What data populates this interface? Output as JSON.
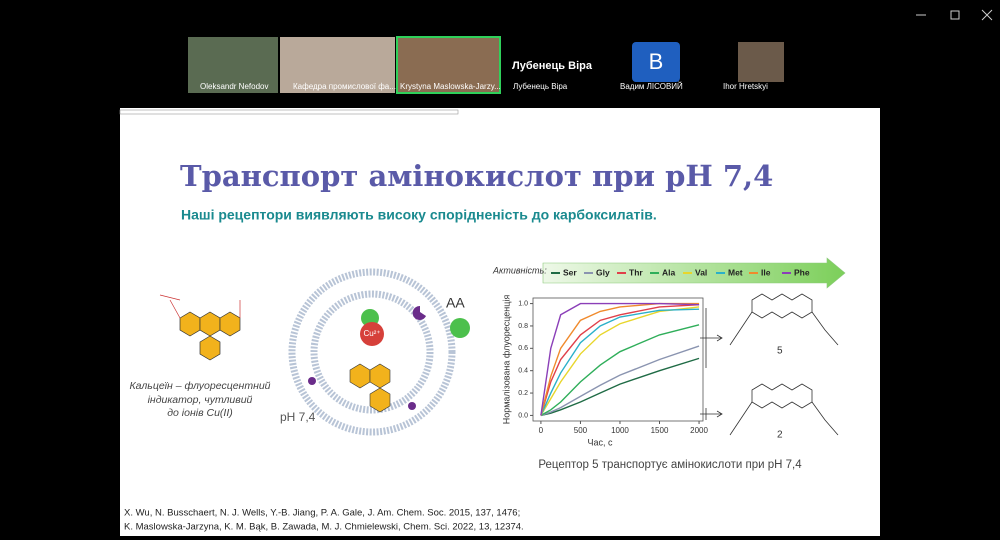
{
  "participants": [
    {
      "name": "Oleksandr Nefodov"
    },
    {
      "name": "Кафедра промислової фа..."
    },
    {
      "name": "Krystyna Maslowska-Jarzy..."
    },
    {
      "name": "Лубенець Віра"
    },
    {
      "name": "Вадим ЛІСОВИЙ",
      "initial": "В"
    },
    {
      "name": "Ihor Hretskyi"
    }
  ],
  "active_speaker": "Лубенець Віра",
  "slide": {
    "title": "Транспорт амінокислот при pH 7,4",
    "subtitle": "Наші рецептори виявляють високу спорідненість до карбоксилатів.",
    "left_caption": [
      "Кальцеїн – флуоресцентний",
      "індикатор, чутливий",
      "до іонів Cu(II)"
    ],
    "vesicle_label": "pH 7,4",
    "aa_label": "AA",
    "cu_label": "Cu²⁺",
    "receptor_labels": [
      "5",
      "2"
    ],
    "chart_caption": "Рецептор 5 транспортує амінокислоти при pH 7,4",
    "references": [
      "X. Wu, N. Busschaert, N. J. Wells, Y.-B. Jiang, P. A. Gale, J. Am. Chem. Soc. 2015, 137, 1476;",
      "K. Maslowska-Jarzyna, K. M. Bąk, B. Zawada, M. J. Chmielewski, Chem. Sci. 2022, 13, 12374."
    ]
  },
  "chart_data": {
    "type": "line",
    "legend_title": "Активність:",
    "x_label": "Час, с",
    "y_label": "Нормалізована флуоресценція",
    "x": [
      0,
      125,
      250,
      500,
      750,
      1000,
      1500,
      2000
    ],
    "xlim": [
      -100,
      2050
    ],
    "xticks": [
      0,
      500,
      1000,
      1500,
      2000
    ],
    "ylim": [
      -0.05,
      1.05
    ],
    "yticks": [
      {
        "value": 0,
        "label": "0.0"
      },
      {
        "value": 0.2,
        "label": "0.2"
      },
      {
        "value": 0.4,
        "label": "0.4"
      },
      {
        "value": 0.6,
        "label": "0.6"
      },
      {
        "value": 0.8,
        "label": "0.8"
      },
      {
        "value": 1,
        "label": "1.0"
      }
    ],
    "series": [
      {
        "name": "Ser",
        "color": "#1f6b45",
        "values": [
          0,
          0.02,
          0.05,
          0.12,
          0.2,
          0.28,
          0.4,
          0.51
        ]
      },
      {
        "name": "Gly",
        "color": "#8a94b0",
        "values": [
          0,
          0.03,
          0.07,
          0.17,
          0.27,
          0.36,
          0.5,
          0.62
        ]
      },
      {
        "name": "Thr",
        "color": "#e0404a",
        "values": [
          0,
          0.3,
          0.5,
          0.72,
          0.85,
          0.9,
          0.97,
          0.99
        ]
      },
      {
        "name": "Ala",
        "color": "#2fae5a",
        "values": [
          0,
          0.05,
          0.12,
          0.3,
          0.45,
          0.57,
          0.72,
          0.81
        ]
      },
      {
        "name": "Val",
        "color": "#e8d62c",
        "values": [
          0,
          0.15,
          0.3,
          0.55,
          0.72,
          0.82,
          0.93,
          0.97
        ]
      },
      {
        "name": "Met",
        "color": "#2ab0c9",
        "values": [
          0,
          0.2,
          0.38,
          0.65,
          0.8,
          0.88,
          0.94,
          0.95
        ]
      },
      {
        "name": "Ile",
        "color": "#f08a2c",
        "values": [
          0,
          0.35,
          0.6,
          0.85,
          0.93,
          0.97,
          1,
          1
        ]
      },
      {
        "name": "Phe",
        "color": "#8b3fb8",
        "values": [
          0,
          0.6,
          0.9,
          1,
          1,
          1,
          1,
          0.99
        ]
      }
    ]
  }
}
